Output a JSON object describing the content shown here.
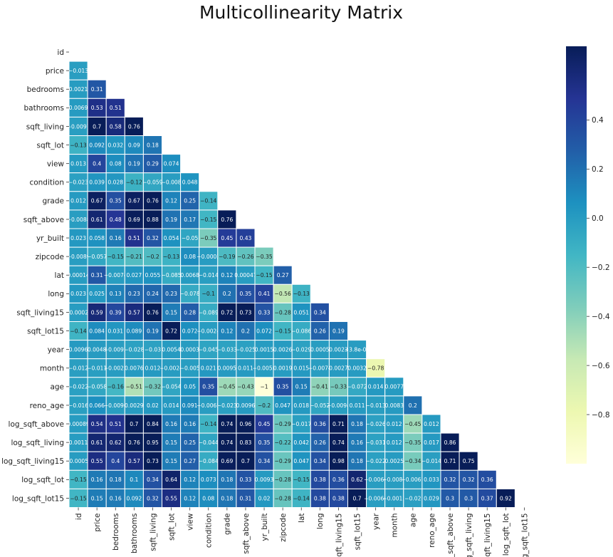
{
  "chart_data": {
    "type": "heatmap",
    "title": "Multicollinearity Matrix",
    "mask": "upper-triangle",
    "colormap": "YlGnBu",
    "vmin": -1,
    "vmax": 0.7,
    "colorbar_ticks": [
      0.4,
      0.2,
      0.0,
      -0.2,
      -0.4,
      -0.6,
      -0.8
    ],
    "colorbar_tick_labels": [
      "0.4",
      "0.2",
      "0.0",
      "−0.2",
      "−0.4",
      "−0.6",
      "−0.8"
    ],
    "variables": [
      "id",
      "price",
      "bedrooms",
      "bathrooms",
      "sqft_living",
      "sqft_lot",
      "view",
      "condition",
      "grade",
      "sqft_above",
      "yr_built",
      "zipcode",
      "lat",
      "long",
      "sqft_living15",
      "sqft_lot15",
      "year",
      "month",
      "age",
      "reno_age",
      "log_sqft_above",
      "log_sqft_living",
      "log_sqft_living15",
      "log_sqft_lot",
      "log_sqft_lot15"
    ],
    "rows": [
      [],
      [
        "-0.013"
      ],
      [
        "0.0021",
        "0.31"
      ],
      [
        "0.0069",
        "0.53",
        "0.51"
      ],
      [
        "-0.0097",
        "0.7",
        "0.58",
        "0.76"
      ],
      [
        "-0.13",
        "0.092",
        "0.032",
        "0.09",
        "0.18"
      ],
      [
        "0.013",
        "0.4",
        "0.08",
        "0.19",
        "0.29",
        "0.074"
      ],
      [
        "-0.023",
        "0.039",
        "0.028",
        "-0.12",
        "-0.059",
        "-0.008",
        "0.048"
      ],
      [
        "0.012",
        "0.67",
        "0.35",
        "0.67",
        "0.76",
        "0.12",
        "0.25",
        "-0.14"
      ],
      [
        "-0.0088",
        "0.61",
        "0.48",
        "0.69",
        "0.88",
        "0.19",
        "0.17",
        "-0.15",
        "0.76"
      ],
      [
        "0.023",
        "0.058",
        "0.16",
        "0.51",
        "0.32",
        "0.054",
        "-0.05",
        "-0.35",
        "0.45",
        "0.43"
      ],
      [
        "-0.0089",
        "-0.057",
        "-0.15",
        "-0.21",
        "-0.2",
        "-0.13",
        "0.08",
        "-0.0003",
        "-0.19",
        "-0.26",
        "-0.35"
      ],
      [
        "0.00014",
        "0.31",
        "-0.0074",
        "0.027",
        "0.055",
        "-0.085",
        "0.0068",
        "-0.014",
        "0.12",
        "0.00047",
        "-0.15",
        "0.27"
      ],
      [
        "0.023",
        "0.025",
        "0.13",
        "0.23",
        "0.24",
        "0.23",
        "-0.078",
        "-0.1",
        "0.2",
        "0.35",
        "0.41",
        "-0.56",
        "-0.13"
      ],
      [
        "-0.00023",
        "0.59",
        "0.39",
        "0.57",
        "0.76",
        "0.15",
        "0.28",
        "-0.089",
        "0.72",
        "0.73",
        "0.33",
        "-0.28",
        "0.051",
        "0.34"
      ],
      [
        "-0.14",
        "0.084",
        "0.031",
        "0.089",
        "0.19",
        "0.72",
        "0.072",
        "-0.0024",
        "0.12",
        "0.2",
        "0.072",
        "-0.15",
        "-0.086",
        "0.26",
        "0.19"
      ],
      [
        "0.0096",
        "0.0048",
        "-0.0092",
        "-0.028",
        "-0.03",
        "0.0054",
        "0.0003",
        "-0.045",
        "-0.033",
        "-0.025",
        "0.0015",
        "0.0026",
        "-0.029",
        "0.0005",
        "0.0023",
        "-3.8e-05"
      ],
      [
        "-0.012",
        "-0.011",
        "-0.0022",
        "0.0076",
        "0.012",
        "-0.0024",
        "-0.005",
        "0.021",
        "0.0095",
        "0.011",
        "-0.0055",
        "0.0019",
        "0.015",
        "-0.0074",
        "0.0027",
        "0.0032",
        "-0.78"
      ],
      [
        "-0.022",
        "-0.058",
        "-0.16",
        "-0.51",
        "-0.32",
        "-0.054",
        "0.05",
        "0.35",
        "-0.45",
        "-0.43",
        "-1",
        "0.35",
        "0.15",
        "-0.41",
        "-0.33",
        "-0.072",
        "0.014",
        "0.0077"
      ],
      [
        "-0.016",
        "0.066",
        "-0.0096",
        "0.0029",
        "0.02",
        "0.014",
        "0.091",
        "-0.0065",
        "-0.023",
        "0.0096",
        "-0.2",
        "0.047",
        "0.018",
        "-0.052",
        "-0.0094",
        "0.011",
        "-0.013",
        "0.0083",
        "0.2"
      ],
      [
        "0.00089",
        "0.54",
        "0.51",
        "0.7",
        "0.84",
        "0.16",
        "0.16",
        "-0.14",
        "0.74",
        "0.96",
        "0.45",
        "-0.29",
        "-0.017",
        "0.36",
        "0.71",
        "0.18",
        "-0.026",
        "0.012",
        "-0.45",
        "0.012"
      ],
      [
        "0.0011",
        "0.61",
        "0.62",
        "0.76",
        "0.95",
        "0.15",
        "0.25",
        "-0.044",
        "0.74",
        "0.83",
        "0.35",
        "-0.22",
        "0.042",
        "0.26",
        "0.74",
        "0.16",
        "-0.031",
        "0.012",
        "-0.35",
        "0.017",
        "0.86"
      ],
      [
        "-0.00059",
        "0.55",
        "0.4",
        "0.57",
        "0.73",
        "0.15",
        "0.27",
        "-0.084",
        "0.69",
        "0.7",
        "0.34",
        "-0.29",
        "0.047",
        "0.34",
        "0.98",
        "0.18",
        "-0.022",
        "0.0025",
        "-0.34",
        "-0.014",
        "0.71",
        "0.75"
      ],
      [
        "-0.15",
        "0.16",
        "0.18",
        "0.1",
        "0.34",
        "0.64",
        "0.12",
        "0.073",
        "0.18",
        "0.33",
        "0.0093",
        "-0.28",
        "-0.15",
        "0.38",
        "0.36",
        "0.62",
        "-0.0066",
        "-0.0081",
        "-0.0061",
        "0.033",
        "0.32",
        "0.32",
        "0.36"
      ],
      [
        "-0.15",
        "0.15",
        "0.16",
        "0.092",
        "0.32",
        "0.55",
        "0.12",
        "0.08",
        "0.18",
        "0.31",
        "0.02",
        "-0.28",
        "-0.14",
        "0.38",
        "0.38",
        "0.7",
        "-0.0066",
        "-0.0011",
        "-0.02",
        "0.029",
        "0.3",
        "0.3",
        "0.37",
        "0.92"
      ]
    ]
  }
}
